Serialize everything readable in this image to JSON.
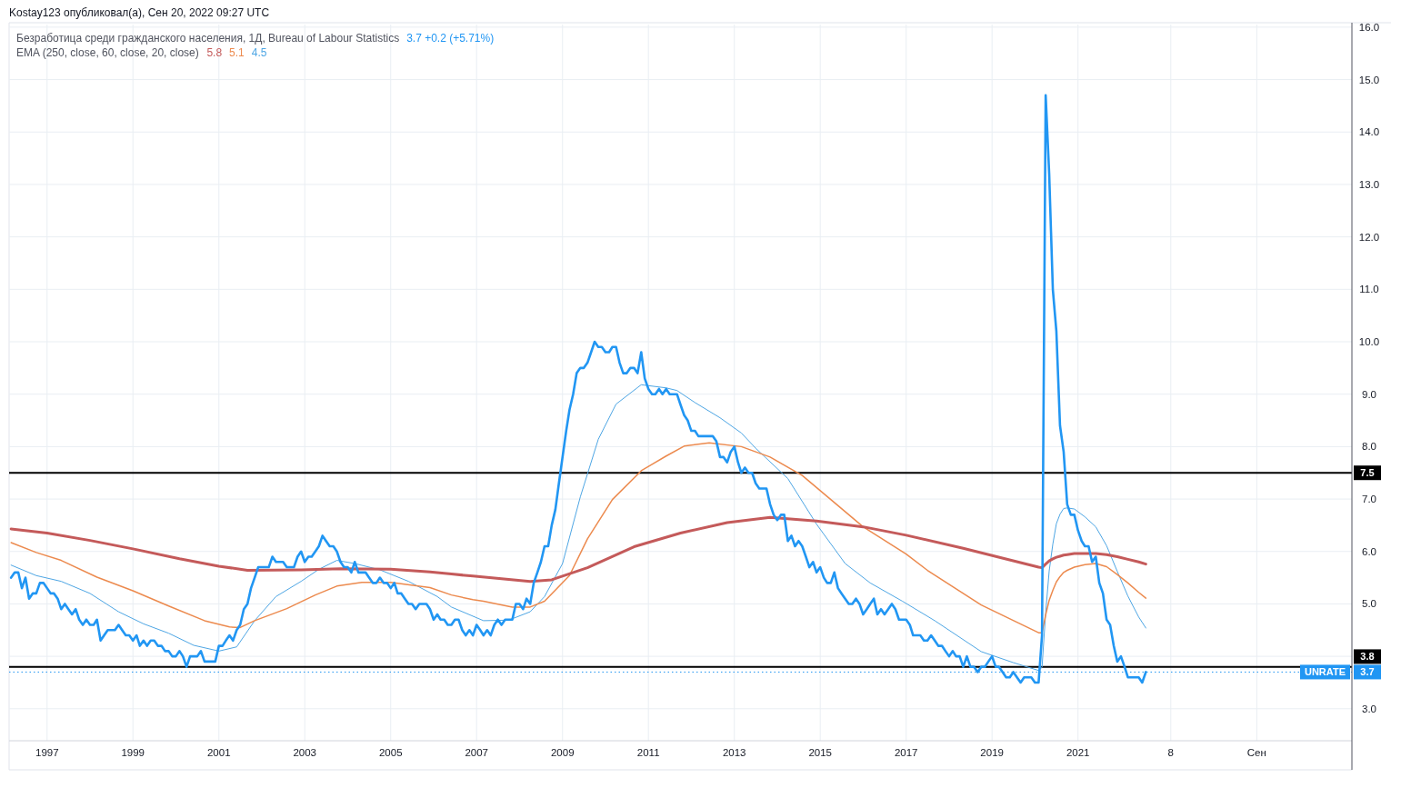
{
  "chart_data": {
    "type": "line",
    "title": "Kostay123 опубликовал(а), Сен 20, 2022 09:27 UTC",
    "x": [
      "1996-03",
      "1996-04",
      "1996-05",
      "1996-06",
      "1996-07",
      "1996-08",
      "1996-09",
      "1996-10",
      "1996-11",
      "1996-12",
      "1997-01",
      "1997-02",
      "1997-03",
      "1997-04",
      "1997-05",
      "1997-06",
      "1997-07",
      "1997-08",
      "1997-09",
      "1997-10",
      "1997-11",
      "1997-12",
      "1998-01",
      "1998-02",
      "1998-03",
      "1998-04",
      "1998-05",
      "1998-06",
      "1998-07",
      "1998-08",
      "1998-09",
      "1998-10",
      "1998-11",
      "1998-12",
      "1999-01",
      "1999-02",
      "1999-03",
      "1999-04",
      "1999-05",
      "1999-06",
      "1999-07",
      "1999-08",
      "1999-09",
      "1999-10",
      "1999-11",
      "1999-12",
      "2000-01",
      "2000-02",
      "2000-03",
      "2000-04",
      "2000-05",
      "2000-06",
      "2000-07",
      "2000-08",
      "2000-09",
      "2000-10",
      "2000-11",
      "2000-12",
      "2001-01",
      "2001-02",
      "2001-03",
      "2001-04",
      "2001-05",
      "2001-06",
      "2001-07",
      "2001-08",
      "2001-09",
      "2001-10",
      "2001-11",
      "2001-12",
      "2002-01",
      "2002-02",
      "2002-03",
      "2002-04",
      "2002-05",
      "2002-06",
      "2002-07",
      "2002-08",
      "2002-09",
      "2002-10",
      "2002-11",
      "2002-12",
      "2003-01",
      "2003-02",
      "2003-03",
      "2003-04",
      "2003-05",
      "2003-06",
      "2003-07",
      "2003-08",
      "2003-09",
      "2003-10",
      "2003-11",
      "2003-12",
      "2004-01",
      "2004-02",
      "2004-03",
      "2004-04",
      "2004-05",
      "2004-06",
      "2004-07",
      "2004-08",
      "2004-09",
      "2004-10",
      "2004-11",
      "2004-12",
      "2005-01",
      "2005-02",
      "2005-03",
      "2005-04",
      "2005-05",
      "2005-06",
      "2005-07",
      "2005-08",
      "2005-09",
      "2005-10",
      "2005-11",
      "2005-12",
      "2006-01",
      "2006-02",
      "2006-03",
      "2006-04",
      "2006-05",
      "2006-06",
      "2006-07",
      "2006-08",
      "2006-09",
      "2006-10",
      "2006-11",
      "2006-12",
      "2007-01",
      "2007-02",
      "2007-03",
      "2007-04",
      "2007-05",
      "2007-06",
      "2007-07",
      "2007-08",
      "2007-09",
      "2007-10",
      "2007-11",
      "2007-12",
      "2008-01",
      "2008-02",
      "2008-03",
      "2008-04",
      "2008-05",
      "2008-06",
      "2008-07",
      "2008-08",
      "2008-09",
      "2008-10",
      "2008-11",
      "2008-12",
      "2009-01",
      "2009-02",
      "2009-03",
      "2009-04",
      "2009-05",
      "2009-06",
      "2009-07",
      "2009-08",
      "2009-09",
      "2009-10",
      "2009-11",
      "2009-12",
      "2010-01",
      "2010-02",
      "2010-03",
      "2010-04",
      "2010-05",
      "2010-06",
      "2010-07",
      "2010-08",
      "2010-09",
      "2010-10",
      "2010-11",
      "2010-12",
      "2011-01",
      "2011-02",
      "2011-03",
      "2011-04",
      "2011-05",
      "2011-06",
      "2011-07",
      "2011-08",
      "2011-09",
      "2011-10",
      "2011-11",
      "2011-12",
      "2012-01",
      "2012-02",
      "2012-03",
      "2012-04",
      "2012-05",
      "2012-06",
      "2012-07",
      "2012-08",
      "2012-09",
      "2012-10",
      "2012-11",
      "2012-12",
      "2013-01",
      "2013-02",
      "2013-03",
      "2013-04",
      "2013-05",
      "2013-06",
      "2013-07",
      "2013-08",
      "2013-09",
      "2013-10",
      "2013-11",
      "2013-12",
      "2014-01",
      "2014-02",
      "2014-03",
      "2014-04",
      "2014-05",
      "2014-06",
      "2014-07",
      "2014-08",
      "2014-09",
      "2014-10",
      "2014-11",
      "2014-12",
      "2015-01",
      "2015-02",
      "2015-03",
      "2015-04",
      "2015-05",
      "2015-06",
      "2015-07",
      "2015-08",
      "2015-09",
      "2015-10",
      "2015-11",
      "2015-12",
      "2016-01",
      "2016-02",
      "2016-03",
      "2016-04",
      "2016-05",
      "2016-06",
      "2016-07",
      "2016-08",
      "2016-09",
      "2016-10",
      "2016-11",
      "2016-12",
      "2017-01",
      "2017-02",
      "2017-03",
      "2017-04",
      "2017-05",
      "2017-06",
      "2017-07",
      "2017-08",
      "2017-09",
      "2017-10",
      "2017-11",
      "2017-12",
      "2018-01",
      "2018-02",
      "2018-03",
      "2018-04",
      "2018-05",
      "2018-06",
      "2018-07",
      "2018-08",
      "2018-09",
      "2018-10",
      "2018-11",
      "2018-12",
      "2019-01",
      "2019-02",
      "2019-03",
      "2019-04",
      "2019-05",
      "2019-06",
      "2019-07",
      "2019-08",
      "2019-09",
      "2019-10",
      "2019-11",
      "2019-12",
      "2020-01",
      "2020-02",
      "2020-03",
      "2020-04",
      "2020-05",
      "2020-06",
      "2020-07",
      "2020-08",
      "2020-09",
      "2020-10",
      "2020-11",
      "2020-12",
      "2021-01",
      "2021-02",
      "2021-03",
      "2021-04",
      "2021-05",
      "2021-06",
      "2021-07",
      "2021-08",
      "2021-09",
      "2021-10",
      "2021-11",
      "2021-12",
      "2022-01",
      "2022-02",
      "2022-03",
      "2022-04",
      "2022-05",
      "2022-06",
      "2022-07",
      "2022-08"
    ],
    "series": [
      {
        "name": "UNRATE",
        "color": "#2196f3",
        "values": [
          5.5,
          5.6,
          5.6,
          5.3,
          5.5,
          5.1,
          5.2,
          5.2,
          5.4,
          5.4,
          5.3,
          5.2,
          5.2,
          5.1,
          4.9,
          5.0,
          4.9,
          4.8,
          4.9,
          4.7,
          4.6,
          4.7,
          4.6,
          4.6,
          4.7,
          4.3,
          4.4,
          4.5,
          4.5,
          4.5,
          4.6,
          4.5,
          4.4,
          4.4,
          4.3,
          4.4,
          4.2,
          4.3,
          4.2,
          4.3,
          4.3,
          4.2,
          4.2,
          4.1,
          4.1,
          4.0,
          4.0,
          4.1,
          4.0,
          3.8,
          4.0,
          4.0,
          4.0,
          4.1,
          3.9,
          3.9,
          3.9,
          3.9,
          4.2,
          4.2,
          4.3,
          4.4,
          4.3,
          4.5,
          4.6,
          4.9,
          5.0,
          5.3,
          5.5,
          5.7,
          5.7,
          5.7,
          5.7,
          5.9,
          5.8,
          5.8,
          5.8,
          5.7,
          5.7,
          5.7,
          5.9,
          6.0,
          5.8,
          5.9,
          5.9,
          6.0,
          6.1,
          6.3,
          6.2,
          6.1,
          6.1,
          6.0,
          5.8,
          5.7,
          5.7,
          5.6,
          5.8,
          5.6,
          5.6,
          5.6,
          5.5,
          5.4,
          5.4,
          5.5,
          5.4,
          5.4,
          5.3,
          5.4,
          5.2,
          5.2,
          5.1,
          5.0,
          5.0,
          4.9,
          5.0,
          5.0,
          5.0,
          4.9,
          4.7,
          4.8,
          4.7,
          4.7,
          4.6,
          4.6,
          4.7,
          4.7,
          4.5,
          4.4,
          4.5,
          4.4,
          4.6,
          4.5,
          4.4,
          4.5,
          4.4,
          4.6,
          4.7,
          4.6,
          4.7,
          4.7,
          4.7,
          5.0,
          5.0,
          4.9,
          5.1,
          5.0,
          5.4,
          5.6,
          5.8,
          6.1,
          6.1,
          6.5,
          6.8,
          7.3,
          7.8,
          8.3,
          8.7,
          9.0,
          9.4,
          9.5,
          9.5,
          9.6,
          9.8,
          10.0,
          9.9,
          9.9,
          9.8,
          9.8,
          9.9,
          9.9,
          9.6,
          9.4,
          9.4,
          9.5,
          9.5,
          9.4,
          9.8,
          9.3,
          9.1,
          9.0,
          9.0,
          9.1,
          9.0,
          9.1,
          9.0,
          9.0,
          9.0,
          8.8,
          8.6,
          8.5,
          8.3,
          8.3,
          8.2,
          8.2,
          8.2,
          8.2,
          8.2,
          8.1,
          7.8,
          7.8,
          7.7,
          7.9,
          8.0,
          7.7,
          7.5,
          7.6,
          7.5,
          7.5,
          7.3,
          7.2,
          7.2,
          7.2,
          6.9,
          6.7,
          6.6,
          6.7,
          6.7,
          6.2,
          6.3,
          6.1,
          6.2,
          6.1,
          5.9,
          5.7,
          5.8,
          5.6,
          5.7,
          5.5,
          5.4,
          5.4,
          5.6,
          5.3,
          5.2,
          5.1,
          5.0,
          5.0,
          5.1,
          5.0,
          4.8,
          4.9,
          5.0,
          5.1,
          4.8,
          4.9,
          4.8,
          4.9,
          5.0,
          4.9,
          4.7,
          4.7,
          4.7,
          4.6,
          4.4,
          4.4,
          4.4,
          4.3,
          4.3,
          4.4,
          4.3,
          4.2,
          4.2,
          4.1,
          4.0,
          4.1,
          4.0,
          4.0,
          3.8,
          4.0,
          3.8,
          3.8,
          3.7,
          3.8,
          3.8,
          3.9,
          4.0,
          3.8,
          3.8,
          3.7,
          3.6,
          3.6,
          3.7,
          3.6,
          3.5,
          3.6,
          3.6,
          3.6,
          3.5,
          3.5,
          4.4,
          14.7,
          13.2,
          11.0,
          10.2,
          8.4,
          7.9,
          6.9,
          6.7,
          6.7,
          6.4,
          6.2,
          6.1,
          6.1,
          5.8,
          5.9,
          5.4,
          5.2,
          4.7,
          4.6,
          4.2,
          3.9,
          4.0,
          3.8,
          3.6,
          3.6,
          3.6,
          3.6,
          3.5,
          3.7
        ]
      },
      {
        "color": "#c45a5a",
        "x": [
          "1996-03",
          "1997-01",
          "1998-01",
          "1999-01",
          "2000-02",
          "2001-01",
          "2001-09",
          "2002-12",
          "2003-11",
          "2005-01",
          "2005-12",
          "2006-06",
          "2006-12",
          "2008-04",
          "2008-10",
          "2009-08",
          "2010-09",
          "2011-10",
          "2012-11",
          "2013-11",
          "2014-12",
          "2016-01",
          "2017-01",
          "2018-05",
          "2020-02",
          "2020-03",
          "2020-04",
          "2020-05",
          "2020-06",
          "2020-07",
          "2020-08",
          "2020-09",
          "2020-10",
          "2020-12",
          "2021-06",
          "2021-09",
          "2021-12",
          "2022-03",
          "2022-06",
          "2022-08"
        ],
        "values": [
          6.43,
          6.35,
          6.21,
          6.05,
          5.86,
          5.72,
          5.64,
          5.65,
          5.67,
          5.66,
          5.61,
          5.57,
          5.53,
          5.43,
          5.46,
          5.69,
          6.09,
          6.35,
          6.55,
          6.65,
          6.58,
          6.47,
          6.31,
          6.06,
          5.7,
          5.69,
          5.76,
          5.82,
          5.86,
          5.89,
          5.91,
          5.93,
          5.94,
          5.96,
          5.96,
          5.94,
          5.9,
          5.85,
          5.8,
          5.76
        ]
      },
      {
        "color": "#ec8a4e",
        "x": [
          "1996-03",
          "1996-10",
          "1997-05",
          "1998-03",
          "1999-01",
          "1999-11",
          "2000-09",
          "2001-04",
          "2001-07",
          "2001-11",
          "2002-08",
          "2003-04",
          "2003-10",
          "2004-05",
          "2005-01",
          "2005-12",
          "2006-06",
          "2006-12",
          "2007-03",
          "2007-11",
          "2008-04",
          "2008-08",
          "2009-03",
          "2009-08",
          "2010-03",
          "2010-11",
          "2011-06",
          "2011-11",
          "2012-06",
          "2013-03",
          "2013-11",
          "2014-08",
          "2015-04",
          "2016-01",
          "2017-01",
          "2017-07",
          "2018-10",
          "2020-02",
          "2020-03",
          "2020-04",
          "2020-05",
          "2020-06",
          "2020-07",
          "2020-08",
          "2020-09",
          "2020-10",
          "2020-12",
          "2021-03",
          "2021-06",
          "2021-09",
          "2021-12",
          "2022-03",
          "2022-06",
          "2022-08"
        ],
        "values": [
          6.17,
          5.98,
          5.83,
          5.51,
          5.25,
          4.96,
          4.68,
          4.56,
          4.55,
          4.68,
          4.91,
          5.17,
          5.34,
          5.41,
          5.41,
          5.31,
          5.17,
          5.08,
          5.05,
          4.94,
          4.94,
          5.05,
          5.54,
          6.24,
          6.99,
          7.54,
          7.82,
          8.01,
          8.07,
          8.0,
          7.8,
          7.45,
          6.99,
          6.47,
          5.95,
          5.64,
          4.98,
          4.45,
          4.45,
          4.79,
          5.07,
          5.26,
          5.42,
          5.52,
          5.6,
          5.64,
          5.7,
          5.75,
          5.77,
          5.71,
          5.56,
          5.4,
          5.22,
          5.11
        ]
      },
      {
        "color": "#4ea6e4",
        "x": [
          "1996-03",
          "1996-10",
          "1997-05",
          "1998-01",
          "1998-09",
          "1999-04",
          "1999-11",
          "2000-06",
          "2001-01",
          "2001-06",
          "2001-11",
          "2002-05",
          "2002-12",
          "2003-05",
          "2003-10",
          "2004-03",
          "2004-10",
          "2005-06",
          "2006-02",
          "2006-06",
          "2007-03",
          "2007-10",
          "2008-04",
          "2008-08",
          "2009-01",
          "2009-06",
          "2009-11",
          "2010-04",
          "2010-11",
          "2011-06",
          "2011-09",
          "2012-02",
          "2012-09",
          "2013-03",
          "2013-07",
          "2014-04",
          "2014-12",
          "2015-08",
          "2016-03",
          "2016-12",
          "2017-09",
          "2018-10",
          "2019-07",
          "2020-02",
          "2020-03",
          "2020-04",
          "2020-05",
          "2020-06",
          "2020-07",
          "2020-08",
          "2020-09",
          "2020-10",
          "2020-12",
          "2021-03",
          "2021-06",
          "2021-09",
          "2021-12",
          "2022-03",
          "2022-06",
          "2022-08"
        ],
        "values": [
          5.74,
          5.54,
          5.43,
          5.2,
          4.85,
          4.62,
          4.44,
          4.21,
          4.1,
          4.18,
          4.68,
          5.14,
          5.43,
          5.66,
          5.83,
          5.77,
          5.65,
          5.43,
          5.14,
          4.94,
          4.68,
          4.69,
          4.85,
          5.14,
          5.77,
          7.04,
          8.14,
          8.81,
          9.18,
          9.12,
          9.07,
          8.84,
          8.55,
          8.26,
          7.97,
          7.39,
          6.52,
          5.77,
          5.4,
          5.05,
          4.68,
          4.09,
          3.88,
          3.73,
          3.79,
          4.83,
          5.63,
          6.14,
          6.53,
          6.71,
          6.82,
          6.83,
          6.81,
          6.66,
          6.47,
          6.11,
          5.62,
          5.15,
          4.75,
          4.54
        ]
      }
    ],
    "xlim": [
      "1996-02-13",
      "2027-05-19"
    ],
    "xticks": [
      {
        "value": "1997",
        "label": "1997"
      },
      {
        "value": "1999",
        "label": "1999"
      },
      {
        "value": "2001",
        "label": "2001"
      },
      {
        "value": "2003",
        "label": "2003"
      },
      {
        "value": "2005",
        "label": "2005"
      },
      {
        "value": "2007",
        "label": "2007"
      },
      {
        "value": "2009",
        "label": "2009"
      },
      {
        "value": "2011",
        "label": "2011"
      },
      {
        "value": "2013",
        "label": "2013"
      },
      {
        "value": "2015",
        "label": "2015"
      },
      {
        "value": "2017",
        "label": "2017"
      },
      {
        "value": "2019",
        "label": "2019"
      },
      {
        "value": "2021",
        "label": "2021"
      },
      {
        "value": "2023-03",
        "label": "8"
      },
      {
        "value": "2025-03",
        "label": "Сен"
      }
    ],
    "ylim": [
      2.39,
      16.05
    ],
    "yticks": [
      {
        "value": 3,
        "label": "3.0"
      },
      {
        "value": 4,
        "label": null
      },
      {
        "value": 5,
        "label": "5.0"
      },
      {
        "value": 6,
        "label": "6.0"
      },
      {
        "value": 7,
        "label": "7.0"
      },
      {
        "value": 8,
        "label": "8.0"
      },
      {
        "value": 9,
        "label": "9.0"
      },
      {
        "value": 10,
        "label": "10.0"
      },
      {
        "value": 11,
        "label": "11.0"
      },
      {
        "value": 12,
        "label": "12.0"
      },
      {
        "value": 13,
        "label": "13.0"
      },
      {
        "value": 14,
        "label": "14.0"
      },
      {
        "value": 15,
        "label": "15.0"
      },
      {
        "value": 16,
        "label": "16.0"
      }
    ],
    "grid": true,
    "ref_lines": [
      {
        "axis": "y",
        "value": 7.5,
        "label": "7.5",
        "color": "#000000"
      },
      {
        "axis": "y",
        "value": 3.8,
        "label": "3.8",
        "color": "#000000"
      },
      {
        "axis": "y",
        "value": 3.7,
        "label": "3.7",
        "color": "#2196f3",
        "line_style": "dotted"
      }
    ],
    "annotations": [
      "Безработица среди гражданского населения, 1Д, Bureau of Labour Statistics",
      "3.7 +0.2 (+5.71%)",
      "EMA (250, close, 60, close, 20, close)",
      "5.8",
      "5.1",
      "4.5"
    ]
  }
}
